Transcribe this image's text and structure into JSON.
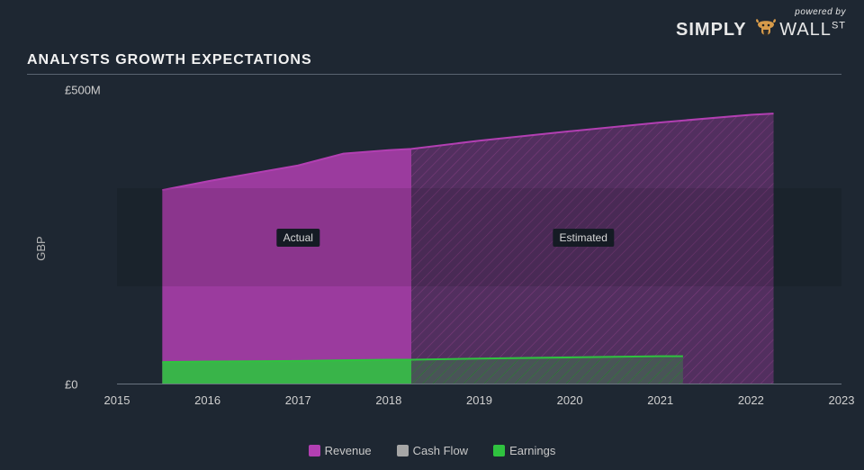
{
  "branding": {
    "powered_by": "powered by",
    "brand_prefix": "SIMPLY",
    "brand_suffix": "WALL",
    "brand_super": "ST"
  },
  "title": "ANALYSTS GROWTH EXPECTATIONS",
  "chart": {
    "type": "area",
    "background_color": "#1e2732",
    "band_color": "rgba(0,0,0,0.10)",
    "y_axis": {
      "label": "GBP",
      "min": 0,
      "max": 500,
      "ticks": [
        {
          "value": 0,
          "label": "£0"
        },
        {
          "value": 500,
          "label": "£500M"
        }
      ],
      "label_fontsize": 13,
      "label_color": "#d0d0d0"
    },
    "x_axis": {
      "min": 2015,
      "max": 2023,
      "ticks": [
        2015,
        2016,
        2017,
        2018,
        2019,
        2020,
        2021,
        2022,
        2023
      ],
      "label_fontsize": 13,
      "label_color": "#d0d0d0"
    },
    "split_year": 2018.25,
    "region_labels": {
      "actual": {
        "text": "Actual",
        "x_year": 2017.0,
        "y_value": 250
      },
      "estimated": {
        "text": "Estimated",
        "x_year": 2020.15,
        "y_value": 250
      }
    },
    "series": {
      "revenue": {
        "label": "Revenue",
        "color": "#b23fb2",
        "fill_opacity": 0.85,
        "start_year": 2015.5,
        "end_year": 2022.25,
        "points": [
          {
            "x": 2015.5,
            "y": 330
          },
          {
            "x": 2016.0,
            "y": 345
          },
          {
            "x": 2017.0,
            "y": 372
          },
          {
            "x": 2017.5,
            "y": 392
          },
          {
            "x": 2018.0,
            "y": 398
          },
          {
            "x": 2018.25,
            "y": 400
          },
          {
            "x": 2019.0,
            "y": 414
          },
          {
            "x": 2020.0,
            "y": 430
          },
          {
            "x": 2021.0,
            "y": 445
          },
          {
            "x": 2022.0,
            "y": 458
          },
          {
            "x": 2022.25,
            "y": 460
          }
        ]
      },
      "earnings": {
        "label": "Earnings",
        "color": "#2fc23f",
        "fill_opacity": 0.9,
        "start_year": 2015.5,
        "end_year": 2021.25,
        "points": [
          {
            "x": 2015.5,
            "y": 38
          },
          {
            "x": 2016.0,
            "y": 39
          },
          {
            "x": 2017.0,
            "y": 40
          },
          {
            "x": 2018.0,
            "y": 42
          },
          {
            "x": 2018.25,
            "y": 42
          },
          {
            "x": 2019.0,
            "y": 44
          },
          {
            "x": 2020.0,
            "y": 46
          },
          {
            "x": 2021.0,
            "y": 48
          },
          {
            "x": 2021.25,
            "y": 48
          }
        ]
      },
      "cash_flow": {
        "label": "Cash Flow",
        "color": "#a6a6a6",
        "fill_opacity": 0.0,
        "points": []
      }
    },
    "legend": {
      "items": [
        {
          "key": "revenue",
          "label": "Revenue",
          "color": "#b23fb2"
        },
        {
          "key": "cash_flow",
          "label": "Cash Flow",
          "color": "#a6a6a6"
        },
        {
          "key": "earnings",
          "label": "Earnings",
          "color": "#2fc23f"
        }
      ],
      "fontsize": 13
    },
    "hatch": {
      "stroke": "#7a3a7a",
      "stroke_width": 1.2,
      "spacing": 8,
      "earnings_stroke": "#1f7a2a"
    }
  }
}
